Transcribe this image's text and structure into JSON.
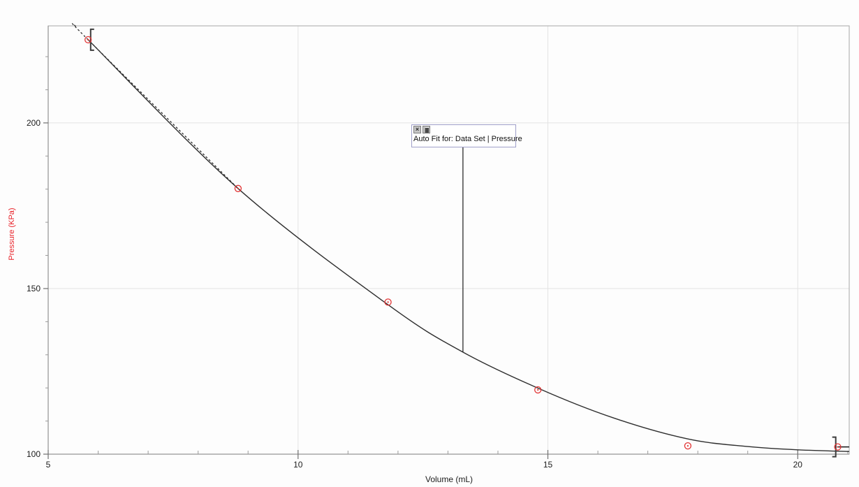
{
  "chart_data": {
    "type": "scatter",
    "title": "",
    "xlabel": "Volume (mL)",
    "ylabel": "Pressure (KPa)",
    "xlim": [
      5,
      21.03
    ],
    "ylim": [
      100,
      229.3
    ],
    "x_major_ticks": [
      5,
      10,
      15,
      20
    ],
    "x_minor_step": 1,
    "y_major_ticks": [
      100,
      150,
      200
    ],
    "y_minor_step": 10,
    "grid_x": [
      10,
      15,
      20
    ],
    "grid_y": [
      150,
      200
    ],
    "grid_on": true,
    "legend_position": "none",
    "series": [
      {
        "name": "Data Set | Pressure",
        "marker": "open-circle-with-dot",
        "points": [
          [
            5.8,
            225.1
          ],
          [
            8.8,
            180.2
          ],
          [
            11.8,
            145.9
          ],
          [
            14.8,
            119.4
          ],
          [
            17.8,
            102.5
          ],
          [
            20.8,
            102.2
          ]
        ]
      }
    ],
    "fit": {
      "label": "Auto Fit for: Data Set | Pressure",
      "dashed_before": 5.85,
      "curve": [
        [
          5.545,
          229.3
        ],
        [
          5.8,
          225.1
        ],
        [
          8.8,
          180.2
        ],
        [
          11.82,
          144.9
        ],
        [
          13.3,
          130.8
        ],
        [
          14.82,
          119.8
        ],
        [
          16.3,
          111.0
        ],
        [
          17.8,
          104.6
        ],
        [
          19.0,
          102.3
        ],
        [
          20.0,
          101.3
        ],
        [
          21.03,
          100.8
        ]
      ],
      "brackets": [
        {
          "v": 5.85,
          "p": 225.1,
          "half_height": 15,
          "opens": "right"
        },
        {
          "v": 20.76,
          "p": 102.2,
          "half_height": 14,
          "opens": "left"
        }
      ],
      "range_end_segment": {
        "from": [
          20.8,
          102.2
        ],
        "to": [
          21.03,
          102.2
        ]
      }
    }
  },
  "annotation": {
    "label": "Auto Fit for: Data Set | Pressure",
    "close_icon_glyph": "×",
    "icons": [
      "close-icon",
      "pin-icon"
    ],
    "connector_v": 13.3,
    "connector_p": 130.8
  },
  "colors": {
    "point": "#e23333",
    "curve": "#2e2e2e",
    "grid": "#e3e3e3",
    "plot_border": "#a8a8a8",
    "axis_dark": "#7a7a7a",
    "tick_major": "#707070",
    "tick_minor": "#9a9a9a",
    "tick_label": "#1c1c1c",
    "y_title_red": "#e81e25",
    "bracket": "#3c3c3c",
    "connector": "#1a1a1a",
    "annotation_border": "#9f9fc9"
  }
}
